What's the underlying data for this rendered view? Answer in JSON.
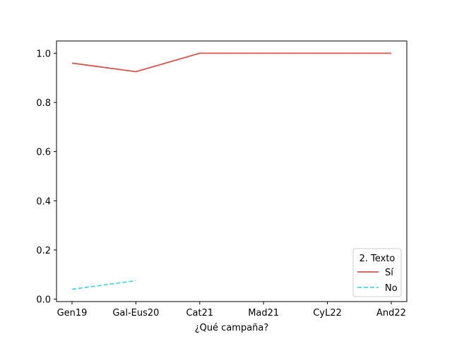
{
  "chart_data": {
    "type": "line",
    "title": "",
    "xlabel": "¿Qué campaña?",
    "ylabel": "",
    "categories": [
      "Gen19",
      "Gal-Eus20",
      "Cat21",
      "Mad21",
      "CyL22",
      "And22"
    ],
    "ylim": [
      -0.01,
      1.05
    ],
    "yticks": [
      "0.0",
      "0.2",
      "0.4",
      "0.6",
      "0.8",
      "1.0"
    ],
    "grid": false,
    "legend": {
      "title": "2. Texto",
      "placement": "lower-right"
    },
    "series": [
      {
        "name": "Sí",
        "values": [
          0.96,
          0.925,
          1.0,
          1.0,
          1.0,
          1.0
        ],
        "color": "#d9544d",
        "style": "solid"
      },
      {
        "name": "No",
        "values": [
          0.04,
          0.075,
          null,
          null,
          null,
          null
        ],
        "color": "#4dd9d9",
        "style": "dashed"
      }
    ]
  }
}
